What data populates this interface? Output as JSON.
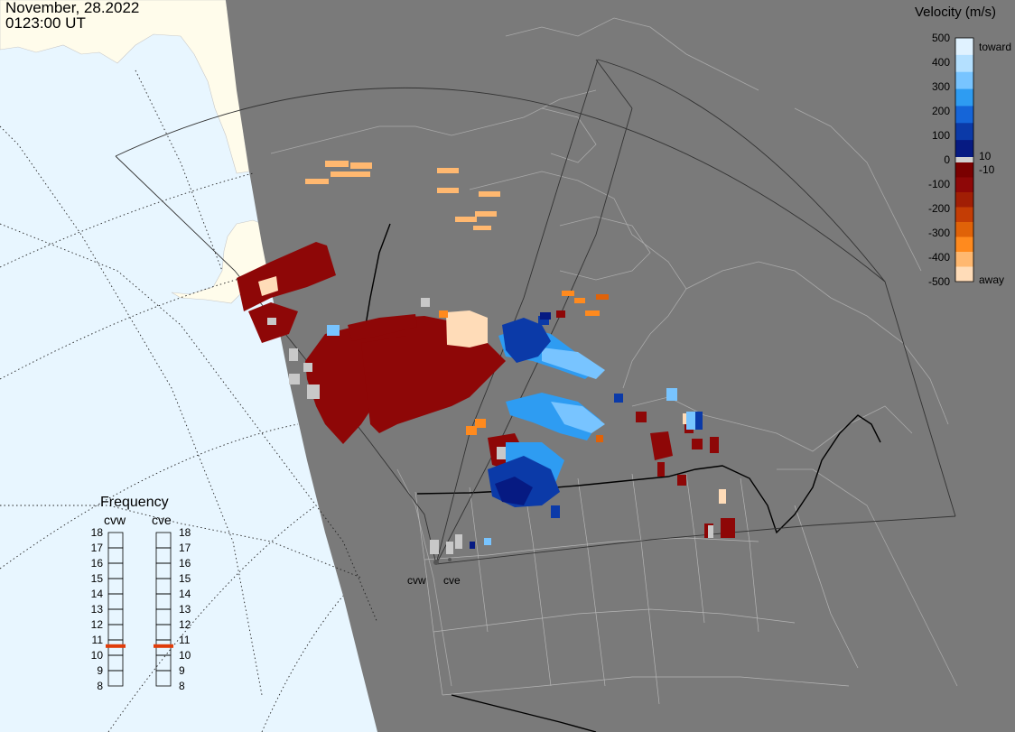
{
  "header": {
    "date": "November, 28.2022",
    "time": "0123:00 UT"
  },
  "colorbar": {
    "title": "Velocity (m/s)",
    "tick_labels": [
      "500",
      "400",
      "300",
      "200",
      "100",
      "0",
      "-100",
      "-200",
      "-300",
      "-400",
      "-500"
    ],
    "tick_values": [
      500,
      400,
      300,
      200,
      100,
      0,
      -100,
      -200,
      -300,
      -400,
      -500
    ],
    "top_label": "toward",
    "bottom_label": "away",
    "inner_labels": [
      "10",
      "-10"
    ],
    "colors": {
      "toward": [
        "#e0f2ff",
        "#b4e0ff",
        "#78c4ff",
        "#2e9cf2",
        "#1565d8",
        "#0b3aa8",
        "#061a82"
      ],
      "away": [
        "#7a0000",
        "#8e0707",
        "#a11e05",
        "#c43d05",
        "#e06208",
        "#ff8a1e",
        "#ffb870",
        "#ffdcb8"
      ]
    }
  },
  "frequency": {
    "title": "Frequency",
    "radars": [
      "cvw",
      "cve"
    ],
    "scale": [
      "18",
      "17",
      "16",
      "15",
      "14",
      "13",
      "12",
      "11",
      "10",
      "9",
      "8"
    ],
    "range": [
      8,
      18
    ],
    "selected": {
      "cvw": 10.6,
      "cve": 10.6
    },
    "marker_color": "#e03c0a"
  },
  "radar_sites": [
    "cvw",
    "cve"
  ],
  "map_colors": {
    "ocean": "#e8f6ff",
    "land_unlit": "#fffceb",
    "night": "#7a7a7a",
    "coast": "#b8b8b8",
    "border": "#000000"
  }
}
